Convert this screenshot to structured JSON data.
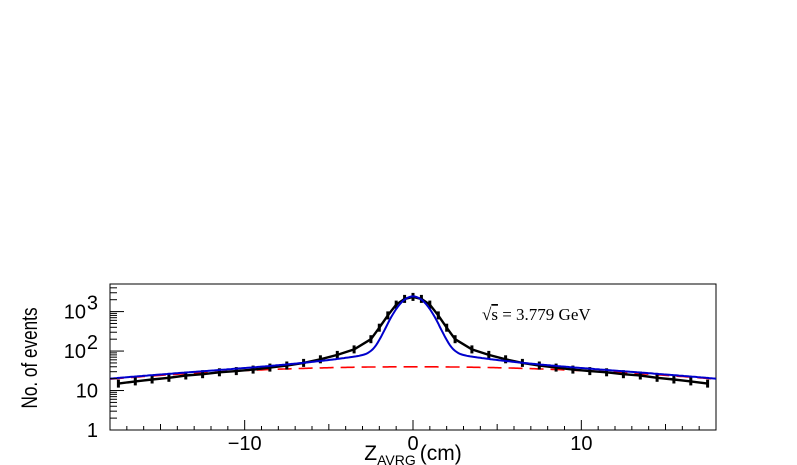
{
  "chart_data": {
    "type": "line",
    "title": "",
    "xlabel": "Z",
    "xlabel_sub": "AVRG",
    "xlabel_unit": "(cm)",
    "ylabel": "No. of events",
    "xlim": [
      -18,
      18
    ],
    "ylim": [
      1,
      5000
    ],
    "yscale": "log",
    "x_ticks": [
      {
        "value": -10,
        "label": "−10"
      },
      {
        "value": 0,
        "label": "0"
      },
      {
        "value": 10,
        "label": "10"
      }
    ],
    "y_ticks": [
      {
        "value": 1,
        "label": "1"
      },
      {
        "value": 10,
        "label": "10"
      },
      {
        "value": 100,
        "label": "10",
        "exp": "2"
      },
      {
        "value": 1000,
        "label": "10",
        "exp": "3"
      }
    ],
    "annotation": {
      "sqrt": "s",
      "text": " = 3.779 GeV"
    },
    "series": [
      {
        "type": "histogram",
        "color": "#000000",
        "x": [
          -17.5,
          -16.5,
          -15.5,
          -14.5,
          -13.5,
          -12.5,
          -11.5,
          -10.5,
          -9.5,
          -8.5,
          -7.5,
          -6.5,
          -5.5,
          -4.5,
          -3.5,
          -2.5,
          -2.0,
          -1.5,
          -1.0,
          -0.5,
          0.0,
          0.5,
          1.0,
          1.5,
          2.0,
          2.5,
          3.5,
          4.5,
          5.5,
          6.5,
          7.5,
          8.5,
          9.5,
          10.5,
          11.5,
          12.5,
          13.5,
          14.5,
          15.5,
          16.5,
          17.5
        ],
        "y": [
          15,
          17,
          19,
          21,
          24,
          26,
          29,
          31,
          34,
          38,
          43,
          50,
          62,
          80,
          110,
          200,
          390,
          800,
          1500,
          2100,
          2350,
          2100,
          1500,
          800,
          390,
          200,
          110,
          80,
          62,
          50,
          43,
          38,
          34,
          31,
          29,
          26,
          24,
          21,
          19,
          17,
          15
        ]
      },
      {
        "type": "fit",
        "color": "#0000cc",
        "amplitude": 2300,
        "sigma_core": 0.8,
        "tail_amplitude": 90,
        "tail_width": 3.5
      },
      {
        "type": "background",
        "color": "#ff0000",
        "style": "dashed",
        "peak": 40,
        "width": 15
      }
    ]
  }
}
